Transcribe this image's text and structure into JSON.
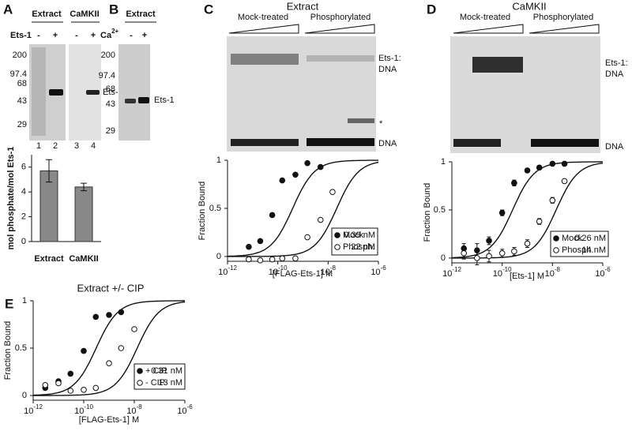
{
  "panel_labels": [
    "A",
    "B",
    "C",
    "D",
    "E"
  ],
  "gel_a": {
    "headers": [
      "Extract",
      "CaMKII"
    ],
    "row_label": "Ets-1",
    "signs": [
      "-",
      "+",
      "-",
      "+"
    ],
    "mw": [
      "200",
      "97.4",
      "68",
      "43",
      "29"
    ],
    "band_label": "Ets-1",
    "lanes": [
      "1",
      "2",
      "3",
      "4"
    ]
  },
  "gel_b": {
    "header": "Extract",
    "row_label": "Ca",
    "row_label_sup": "2+",
    "signs": [
      "-",
      "+"
    ],
    "mw": [
      "200",
      "97.4",
      "68",
      "43",
      "29"
    ],
    "band_label": "Ets-1"
  },
  "gel_c": {
    "title": "Extract",
    "conditions": [
      "Mock-treated",
      "Phosphorylated"
    ],
    "complex_label": [
      "Ets-1:",
      "DNA"
    ],
    "star": "*",
    "free_label": "DNA"
  },
  "gel_d": {
    "title": "CaMKII",
    "conditions": [
      "Mock-treated",
      "Phosphorylated"
    ],
    "complex_label": [
      "Ets-1:",
      "DNA"
    ],
    "free_label": "DNA"
  },
  "chart_data": [
    {
      "type": "bar",
      "categories": [
        "Extract",
        "CaMKII"
      ],
      "values": [
        5.7,
        4.4
      ],
      "errors": [
        0.9,
        0.3
      ],
      "y_label": "mol phosphate/mol Ets-1",
      "ylim": [
        0,
        7
      ],
      "yticks": [
        0,
        2,
        4,
        6
      ],
      "color": "#888888"
    },
    {
      "type": "scatter",
      "x_label": "[FLAG-Ets-1] M",
      "y_label": "Fraction Bound",
      "xscale": "log",
      "xlim": [
        1e-12,
        1e-06
      ],
      "xticks": [
        {
          "value": 1e-12,
          "label": "10",
          "exponent": "-12"
        },
        {
          "value": 1e-10,
          "label": "10",
          "exponent": "-10"
        },
        {
          "value": 1e-08,
          "label": "10",
          "exponent": "-8"
        },
        {
          "value": 1e-06,
          "label": "10",
          "exponent": "-6"
        }
      ],
      "ylim": [
        -0.05,
        1
      ],
      "yticks": [
        0,
        0.5,
        1
      ],
      "x": [
        7e-12,
        2e-11,
        6e-11,
        1.5e-10,
        5e-10,
        1.5e-09,
        5e-09,
        1.5e-08
      ],
      "series": [
        {
          "name": "Mock",
          "marker": "filled",
          "kd": 3.9e-10,
          "kd_label": "0.39 nM",
          "values": [
            0.1,
            0.16,
            0.43,
            0.79,
            0.85,
            0.97,
            0.93,
            null
          ]
        },
        {
          "name": "Phosph.",
          "marker": "open",
          "kd": 2.2e-08,
          "kd_label": "22 nM",
          "values": [
            -0.03,
            -0.04,
            -0.03,
            -0.02,
            -0.02,
            0.2,
            0.38,
            0.67
          ]
        }
      ]
    },
    {
      "type": "scatter",
      "x_label": "[Ets-1] M",
      "y_label": "Fraction Bound",
      "xscale": "log",
      "xlim": [
        1e-12,
        1e-06
      ],
      "xticks": [
        {
          "value": 1e-12,
          "label": "10",
          "exponent": "-12"
        },
        {
          "value": 1e-10,
          "label": "10",
          "exponent": "-10"
        },
        {
          "value": 1e-08,
          "label": "10",
          "exponent": "-8"
        },
        {
          "value": 1e-06,
          "label": "10",
          "exponent": "-6"
        }
      ],
      "ylim": [
        -0.05,
        1
      ],
      "yticks": [
        0,
        0.5,
        1
      ],
      "x": [
        3e-12,
        1e-11,
        3e-11,
        1e-10,
        3e-10,
        1e-09,
        3e-09,
        1e-08,
        3e-08
      ],
      "series": [
        {
          "name": "Mock",
          "marker": "filled",
          "kd": 2.6e-10,
          "kd_label": "0.26 nM",
          "values": [
            0.1,
            0.08,
            0.18,
            0.47,
            0.78,
            0.91,
            0.94,
            0.98,
            0.98
          ],
          "errors": [
            0.05,
            0.07,
            0.04,
            0.03,
            0.03,
            0.02,
            0.02,
            0.02,
            0.02
          ]
        },
        {
          "name": "Phosph.",
          "marker": "open",
          "kd": 1.4e-08,
          "kd_label": "14 nM",
          "values": [
            0.05,
            0.0,
            0.02,
            0.05,
            0.07,
            0.15,
            0.38,
            0.6,
            0.8
          ],
          "errors": [
            0.06,
            0.07,
            0.06,
            0.04,
            0.04,
            0.04,
            0.03,
            0.03,
            0.02
          ]
        }
      ]
    },
    {
      "type": "scatter",
      "title": "Extract +/- CIP",
      "x_label": "[FLAG-Ets-1] M",
      "y_label": "Fraction Bound",
      "xscale": "log",
      "xlim": [
        1e-12,
        1e-06
      ],
      "xticks": [
        {
          "value": 1e-12,
          "label": "10",
          "exponent": "-12"
        },
        {
          "value": 1e-10,
          "label": "10",
          "exponent": "-10"
        },
        {
          "value": 1e-08,
          "label": "10",
          "exponent": "-8"
        },
        {
          "value": 1e-06,
          "label": "10",
          "exponent": "-6"
        }
      ],
      "ylim": [
        -0.05,
        1
      ],
      "yticks": [
        0,
        0.5,
        1
      ],
      "x": [
        3e-12,
        1e-11,
        3e-11,
        1e-10,
        3e-10,
        1e-09,
        3e-09,
        1e-08
      ],
      "series": [
        {
          "name": "+ CIP",
          "marker": "filled",
          "kd": 3.1e-10,
          "kd_label": "0.31 nM",
          "values": [
            0.08,
            0.15,
            0.23,
            0.47,
            0.83,
            0.85,
            0.88,
            null
          ]
        },
        {
          "name": "- CIP",
          "marker": "open",
          "kd": 1.3e-08,
          "kd_label": "13 nM",
          "values": [
            0.11,
            0.13,
            0.05,
            0.06,
            0.08,
            0.34,
            0.5,
            0.7
          ]
        }
      ]
    }
  ]
}
